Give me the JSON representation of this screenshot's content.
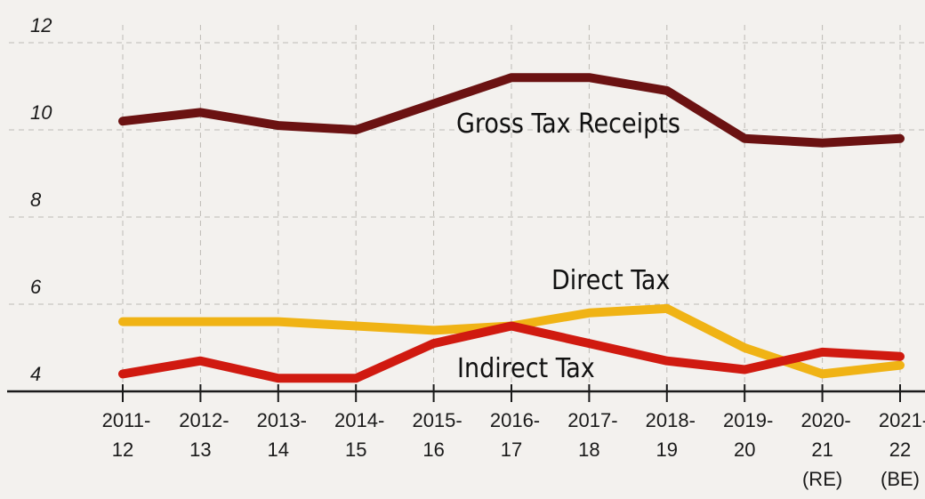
{
  "chart_data": {
    "type": "line",
    "x": [
      "2011-12",
      "2012-13",
      "2013-14",
      "2014-15",
      "2015-16",
      "2016-17",
      "2017-18",
      "2018-19",
      "2019-20",
      "2020-21 (RE)",
      "2021-22 (BE)"
    ],
    "x_tick_lines": [
      [
        "2011-",
        "12",
        ""
      ],
      [
        "2012-",
        "13",
        ""
      ],
      [
        "2013-",
        "14",
        ""
      ],
      [
        "2014-",
        "15",
        ""
      ],
      [
        "2015-",
        "16",
        ""
      ],
      [
        "2016-",
        "17",
        ""
      ],
      [
        "2017-",
        "18",
        ""
      ],
      [
        "2018-",
        "19",
        ""
      ],
      [
        "2019-",
        "20",
        ""
      ],
      [
        "2020-",
        "21",
        "(RE)"
      ],
      [
        "2021-",
        "22",
        "(BE)"
      ]
    ],
    "ylim": [
      4,
      12
    ],
    "yticks": [
      "12",
      "10",
      "8",
      "6",
      "4"
    ],
    "grid": true,
    "series": [
      {
        "name": "Gross Tax Receipts",
        "color": "#6b1212",
        "values": [
          10.2,
          10.4,
          10.1,
          10.0,
          10.6,
          11.2,
          11.2,
          10.9,
          9.8,
          9.7,
          9.8
        ]
      },
      {
        "name": "Direct Tax",
        "color": "#f0b315",
        "values": [
          5.6,
          5.6,
          5.6,
          5.5,
          5.4,
          5.5,
          5.8,
          5.9,
          5.0,
          4.4,
          4.6
        ]
      },
      {
        "name": "Indirect Tax",
        "color": "#d01a10",
        "values": [
          4.4,
          4.7,
          4.3,
          4.3,
          5.1,
          5.5,
          5.1,
          4.7,
          4.5,
          4.9,
          4.8
        ]
      }
    ],
    "xlabel": "",
    "ylabel": ""
  }
}
